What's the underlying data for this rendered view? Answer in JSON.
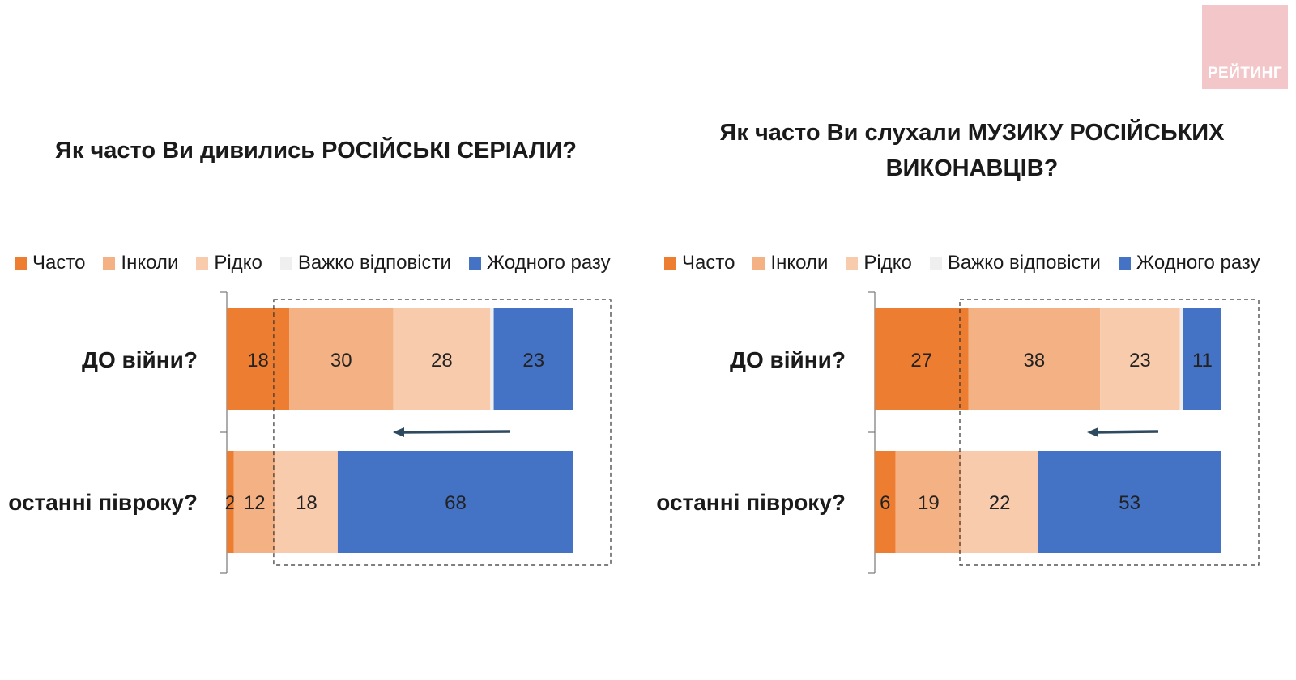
{
  "logo": {
    "text": "РЕЙТИНГ"
  },
  "colors": {
    "Часто": "#ed7d31",
    "Інколи": "#f4b183",
    "Рідко": "#f8cbad",
    "Важко відповісти": "#efefef",
    "Жодного разу": "#4472c4"
  },
  "chart_data": [
    {
      "type": "bar",
      "orientation": "horizontal-stacked",
      "title": "Як часто Ви дивились РОСІЙСЬКІ СЕРІАЛИ?",
      "categories": [
        "ДО війни?",
        "останні півроку?"
      ],
      "legend_position": "top",
      "series": [
        {
          "name": "Часто",
          "values": [
            18,
            2
          ]
        },
        {
          "name": "Інколи",
          "values": [
            30,
            12
          ]
        },
        {
          "name": "Рідко",
          "values": [
            28,
            18
          ]
        },
        {
          "name": "Важко відповісти",
          "values": [
            1,
            0
          ]
        },
        {
          "name": "Жодного разу",
          "values": [
            23,
            68
          ]
        }
      ]
    },
    {
      "type": "bar",
      "orientation": "horizontal-stacked",
      "title": "Як часто Ви слухали МУЗИКУ РОСІЙСЬКИХ\nВИКОНАВЦІВ?",
      "categories": [
        "ДО війни?",
        "останні півроку?"
      ],
      "legend_position": "top",
      "series": [
        {
          "name": "Часто",
          "values": [
            27,
            6
          ]
        },
        {
          "name": "Інколи",
          "values": [
            38,
            19
          ]
        },
        {
          "name": "Рідко",
          "values": [
            23,
            22
          ]
        },
        {
          "name": "Важко відповісти",
          "values": [
            1,
            0
          ]
        },
        {
          "name": "Жодного разу",
          "values": [
            11,
            53
          ]
        }
      ]
    }
  ]
}
